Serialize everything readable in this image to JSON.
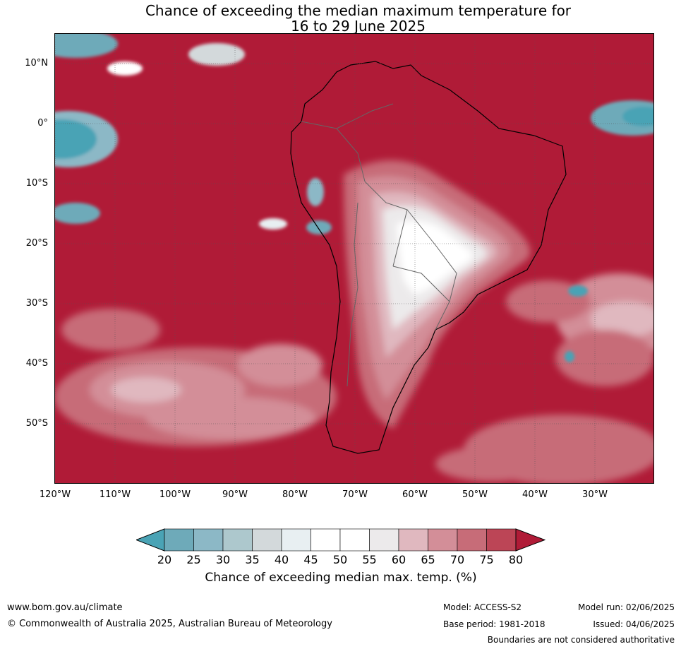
{
  "title_line1": "Chance of exceeding the median maximum temperature for",
  "title_line2": "16 to 29 June 2025",
  "map": {
    "region": "South America",
    "lat_labels": [
      "10°N",
      "0°",
      "10°S",
      "20°S",
      "30°S",
      "40°S",
      "50°S"
    ],
    "lon_labels": [
      "120°W",
      "110°W",
      "100°W",
      "90°W",
      "80°W",
      "70°W",
      "60°W",
      "50°W",
      "40°W",
      "30°W"
    ],
    "dominant_category": "80"
  },
  "legend": {
    "ticks": [
      "20",
      "25",
      "30",
      "35",
      "40",
      "45",
      "50",
      "55",
      "60",
      "65",
      "70",
      "75",
      "80"
    ],
    "label": "Chance of exceeding median max. temp. (%)",
    "colors": [
      "#4aa3b5",
      "#6eaab9",
      "#8cb8c6",
      "#adc8cd",
      "#d3d9db",
      "#e8eff2",
      "#ffffff",
      "#ffffff",
      "#eceaeb",
      "#e0b8bf",
      "#d38e98",
      "#c76c78",
      "#bc4556",
      "#b01b37"
    ]
  },
  "footer": {
    "url": "www.bom.gov.au/climate",
    "copyright": "© Commonwealth of Australia 2025, Australian Bureau of Meteorology",
    "model": "Model: ACCESS-S2",
    "base_period": "Base period: 1981-2018",
    "model_run": "Model run: 02/06/2025",
    "issued": "Issued: 04/06/2025",
    "disclaimer": "Boundaries are not considered authoritative"
  }
}
